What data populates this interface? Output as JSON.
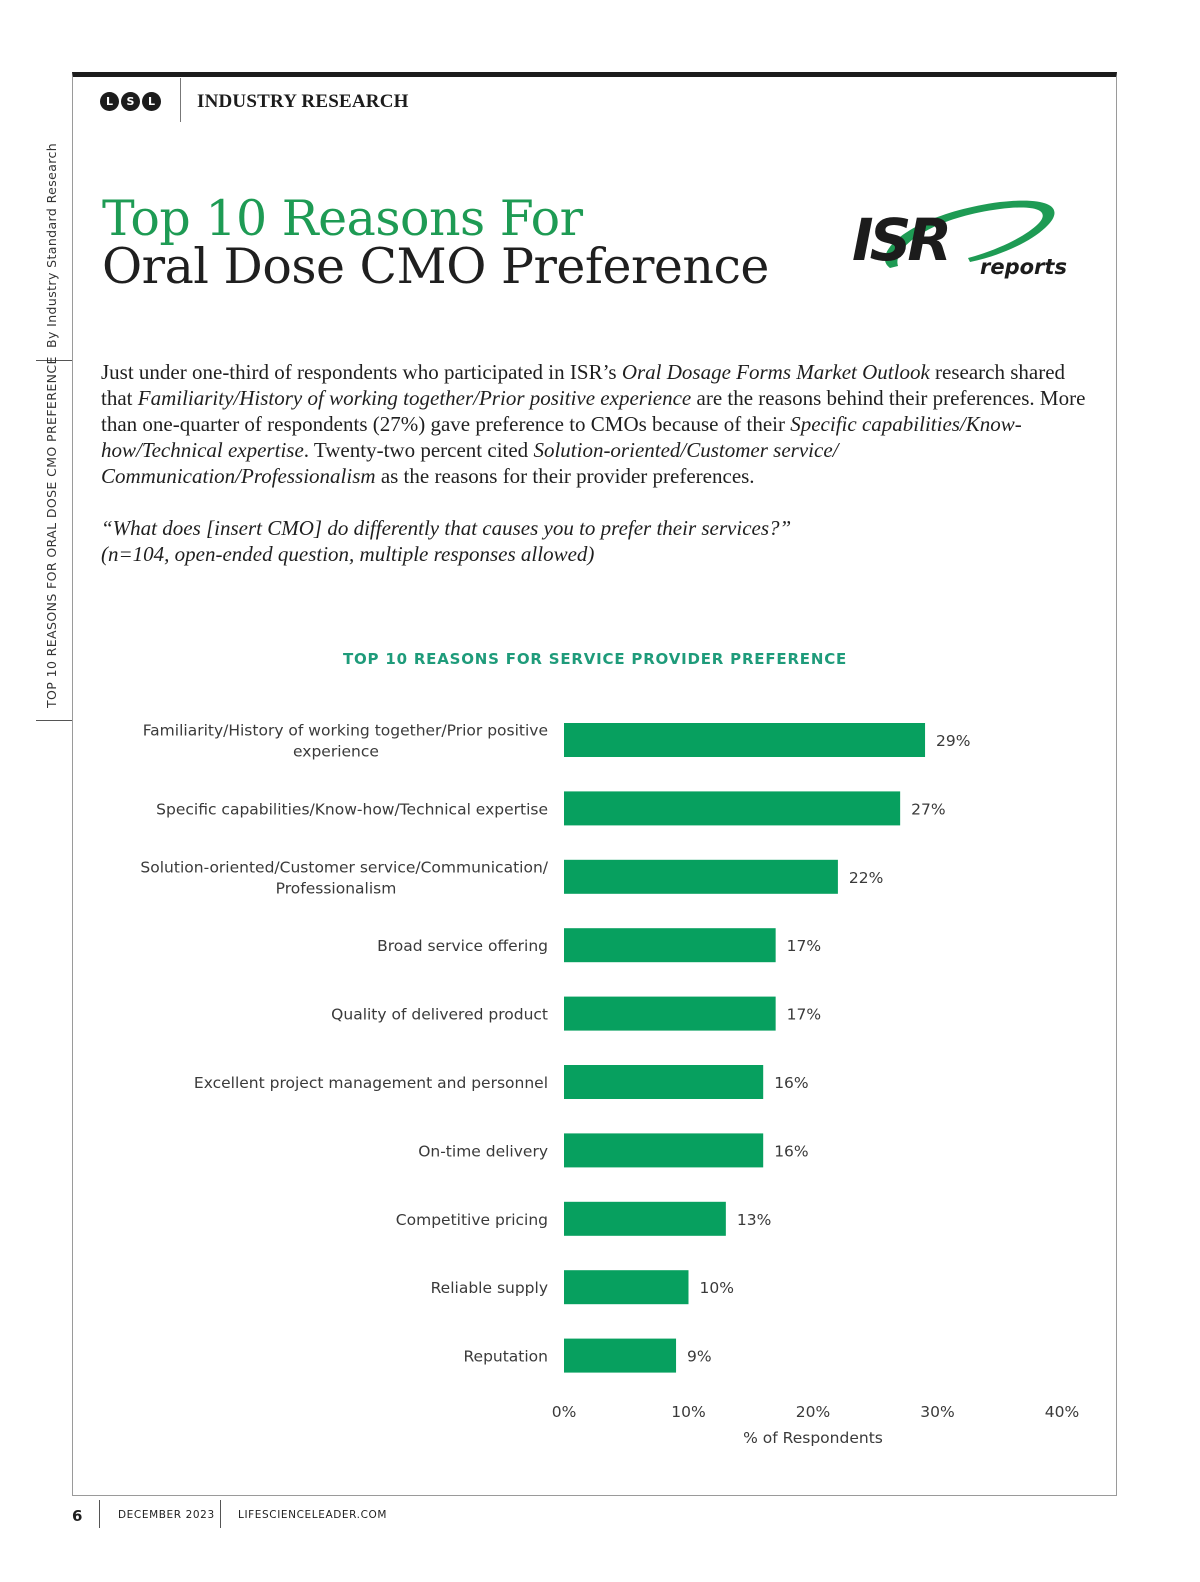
{
  "side_label": {
    "by_line": "By Industry Standard Research",
    "section": "TOP 10 REASONS FOR ORAL DOSE CMO PREFERENCE"
  },
  "header": {
    "logo_letters": [
      "L",
      "S",
      "L"
    ],
    "section_label": "INDUSTRY RESEARCH"
  },
  "title": {
    "line1": "Top 10 Reasons For",
    "line2": "Oral Dose CMO Preference"
  },
  "isr_logo": {
    "main": "ISR",
    "sub": "reports",
    "color": "#1e9b54"
  },
  "body": {
    "p1": "Just under one-third of respondents who participated in ISR’s ",
    "p1_em": "Oral Dosage Forms Market Outlook",
    "p2": " research shared that ",
    "p2_em": "Familiarity/History of working together/Prior positive experience",
    "p3": " are the reasons behind their preferences. More than one-quarter of respondents (27%) gave preference to CMOs because of their ",
    "p3_em": "Specific capabilities/Know-how/Technical expertise",
    "p4": ". Twenty-two percent cited ",
    "p4_em": "Solution-oriented/Customer service/ Communication/Professionalism",
    "p5": " as the reasons for their provider preferences.",
    "quote1": "“What does [insert CMO] do differently that causes you to prefer their services?”",
    "quote2": "(n=104, open-ended question, multiple responses allowed)"
  },
  "chart_data": {
    "type": "bar",
    "orientation": "horizontal",
    "title": "TOP 10 REASONS FOR SERVICE PROVIDER PREFERENCE",
    "categories": [
      [
        "Familiarity/History of working together/Prior positive",
        "experience"
      ],
      [
        "Specific capabilities/Know-how/Technical expertise"
      ],
      [
        "Solution-oriented/Customer service/Communication/",
        "Professionalism"
      ],
      [
        "Broad service offering"
      ],
      [
        "Quality of delivered product"
      ],
      [
        "Excellent project management and personnel"
      ],
      [
        "On-time delivery"
      ],
      [
        "Competitive pricing"
      ],
      [
        "Reliable supply"
      ],
      [
        "Reputation"
      ]
    ],
    "values": [
      29,
      27,
      22,
      17,
      17,
      16,
      16,
      13,
      10,
      9
    ],
    "value_labels": [
      "29%",
      "27%",
      "22%",
      "17%",
      "17%",
      "16%",
      "16%",
      "13%",
      "10%",
      "9%"
    ],
    "xlim": [
      0,
      40
    ],
    "xticks": [
      0,
      10,
      20,
      30,
      40
    ],
    "xtick_labels": [
      "0%",
      "10%",
      "20%",
      "30%",
      "40%"
    ],
    "xlabel": "% of Respondents",
    "bar_color": "#07a05f",
    "grid": false
  },
  "footer": {
    "page": "6",
    "month": "DECEMBER 2023",
    "site": "LIFESCIENCELEADER.COM"
  }
}
